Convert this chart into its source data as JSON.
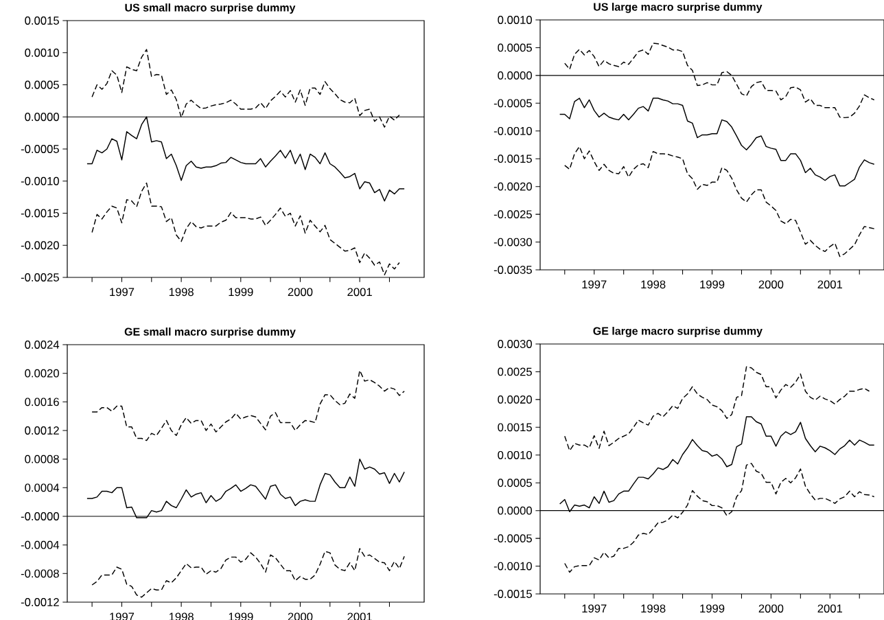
{
  "chart_data": [
    {
      "type": "line",
      "title": "US small macro surprise dummy",
      "x": [
        "1996-12",
        "1997-01",
        "1997-02",
        "1997-03",
        "1997-04",
        "1997-05",
        "1997-06",
        "1997-07",
        "1997-08",
        "1997-09",
        "1997-10",
        "1997-11",
        "1997-12",
        "1998-01",
        "1998-02",
        "1998-03",
        "1998-04",
        "1998-05",
        "1998-06",
        "1998-07",
        "1998-08",
        "1998-09",
        "1998-10",
        "1998-11",
        "1998-12",
        "1999-01",
        "1999-02",
        "1999-03",
        "1999-04",
        "1999-05",
        "1999-06",
        "1999-07",
        "1999-08",
        "1999-09",
        "1999-10",
        "1999-11",
        "1999-12",
        "2000-01",
        "2000-02",
        "2000-03",
        "2000-04",
        "2000-05",
        "2000-06",
        "2000-07",
        "2000-08",
        "2000-09",
        "2000-10",
        "2000-11",
        "2000-12",
        "2001-01",
        "2001-02",
        "2001-03",
        "2001-04",
        "2001-05",
        "2001-06",
        "2001-07",
        "2001-08",
        "2001-09",
        "2001-10",
        "2001-11",
        "2001-12",
        "2002-01",
        "2002-02",
        "2002-03",
        "2002-04"
      ],
      "xlim": [
        "1996-08",
        "2002-08"
      ],
      "xticks": [
        {
          "value": "1997-01",
          "label": null
        },
        {
          "value": "1997-07",
          "label": "1997"
        },
        {
          "value": "1998-01",
          "label": null
        },
        {
          "value": "1998-07",
          "label": "1998"
        },
        {
          "value": "1999-01",
          "label": null
        },
        {
          "value": "1999-07",
          "label": "1999"
        },
        {
          "value": "2000-01",
          "label": null
        },
        {
          "value": "2000-07",
          "label": "2000"
        },
        {
          "value": "2001-01",
          "label": null
        },
        {
          "value": "2001-07",
          "label": "2001"
        },
        {
          "value": "2002-01",
          "label": null
        }
      ],
      "ylim": [
        -0.0025,
        0.0015
      ],
      "yticks": [
        {
          "value": -0.0025,
          "label": "-0.0025"
        },
        {
          "value": -0.002,
          "label": "-0.0020"
        },
        {
          "value": -0.0015,
          "label": "-0.0015"
        },
        {
          "value": -0.001,
          "label": "-0.0010"
        },
        {
          "value": -0.0005,
          "label": "-0.0005"
        },
        {
          "value": 0,
          "label": "0.0000"
        },
        {
          "value": 0.0005,
          "label": "0.0005"
        },
        {
          "value": 0.001,
          "label": "0.0010"
        },
        {
          "value": 0.0015,
          "label": "0.0015"
        }
      ],
      "ref_lines": [
        {
          "axis": "y",
          "value": 0
        }
      ],
      "series": [
        {
          "color": "#000000",
          "line_style": "dashed",
          "values": [
            null,
            0.00031,
            0.0005,
            0.00043,
            0.00052,
            0.00072,
            0.00065,
            0.00038,
            0.00078,
            0.00074,
            0.00072,
            0.00093,
            0.00105,
            0.00063,
            0.00066,
            0.00065,
            0.00035,
            0.00042,
            0.00027,
            -1e-05,
            0.0002,
            0.00026,
            0.00019,
            0.00013,
            0.00014,
            0.00017,
            0.00019,
            0.0002,
            0.00022,
            0.00026,
            0.0002,
            0.00012,
            0.00012,
            0.00012,
            0.00014,
            0.00022,
            0.00013,
            0.00025,
            0.00032,
            0.0004,
            0.00031,
            0.00041,
            0.00023,
            0.00042,
            0.00018,
            0.00045,
            0.00045,
            0.00035,
            0.00055,
            0.00044,
            0.00036,
            0.00027,
            0.00023,
            0.00022,
            0.00029,
            2e-05,
            0.0001,
            0.00012,
            -7e-05,
            0,
            -0.00016,
            1e-05,
            -5e-05,
            3e-05,
            null
          ]
        },
        {
          "color": "#000000",
          "line_style": "solid",
          "values": [
            -0.00073,
            -0.00073,
            -0.00052,
            -0.00056,
            -0.0005,
            -0.00034,
            -0.00038,
            -0.00067,
            -0.00023,
            -0.00029,
            -0.00034,
            -0.00012,
            0,
            -0.00039,
            -0.00037,
            -0.00039,
            -0.00065,
            -0.00058,
            -0.00076,
            -0.00099,
            -0.00076,
            -0.00069,
            -0.00078,
            -0.0008,
            -0.00078,
            -0.00078,
            -0.00076,
            -0.00072,
            -0.00071,
            -0.00063,
            -0.00067,
            -0.00071,
            -0.00073,
            -0.00073,
            -0.00073,
            -0.00065,
            -0.00078,
            -0.00069,
            -0.00061,
            -0.00052,
            -0.00064,
            -0.00052,
            -0.00073,
            -0.00058,
            -0.00082,
            -0.00058,
            -0.00063,
            -0.00073,
            -0.00056,
            -0.00073,
            -0.00078,
            -0.00086,
            -0.00095,
            -0.00093,
            -0.00088,
            -0.00112,
            -0.00101,
            -0.00103,
            -0.00118,
            -0.00113,
            -0.00131,
            -0.00114,
            -0.0012,
            -0.00112,
            -0.00112
          ]
        },
        {
          "color": "#000000",
          "line_style": "dashed",
          "values": [
            null,
            -0.0018,
            -0.00152,
            -0.00159,
            -0.00148,
            -0.00139,
            -0.00142,
            -0.00165,
            -0.00129,
            -0.00131,
            -0.0014,
            -0.00116,
            -0.00103,
            -0.00139,
            -0.00139,
            -0.0014,
            -0.00163,
            -0.00157,
            -0.00184,
            -0.00194,
            -0.00174,
            -0.00163,
            -0.00171,
            -0.00173,
            -0.0017,
            -0.0017,
            -0.0017,
            -0.00164,
            -0.00161,
            -0.00149,
            -0.00157,
            -0.00157,
            -0.00157,
            -0.00159,
            -0.00159,
            -0.00156,
            -0.00169,
            -0.00161,
            -0.00152,
            -0.00142,
            -0.00155,
            -0.0015,
            -0.0017,
            -0.00154,
            -0.00181,
            -0.00161,
            -0.0017,
            -0.00179,
            -0.00169,
            -0.00191,
            -0.00197,
            -0.00203,
            -0.00209,
            -0.00208,
            -0.00204,
            -0.00227,
            -0.00212,
            -0.0022,
            -0.00231,
            -0.00226,
            -0.00246,
            -0.00229,
            -0.00237,
            -0.00227,
            null
          ]
        }
      ]
    },
    {
      "type": "line",
      "title": "US large macro surprise dummy",
      "x": [
        "1996-12",
        "1997-01",
        "1997-02",
        "1997-03",
        "1997-04",
        "1997-05",
        "1997-06",
        "1997-07",
        "1997-08",
        "1997-09",
        "1997-10",
        "1997-11",
        "1997-12",
        "1998-01",
        "1998-02",
        "1998-03",
        "1998-04",
        "1998-05",
        "1998-06",
        "1998-07",
        "1998-08",
        "1998-09",
        "1998-10",
        "1998-11",
        "1998-12",
        "1999-01",
        "1999-02",
        "1999-03",
        "1999-04",
        "1999-05",
        "1999-06",
        "1999-07",
        "1999-08",
        "1999-09",
        "1999-10",
        "1999-11",
        "1999-12",
        "2000-01",
        "2000-02",
        "2000-03",
        "2000-04",
        "2000-05",
        "2000-06",
        "2000-07",
        "2000-08",
        "2000-09",
        "2000-10",
        "2000-11",
        "2000-12",
        "2001-01",
        "2001-02",
        "2001-03",
        "2001-04",
        "2001-05",
        "2001-06",
        "2001-07",
        "2001-08",
        "2001-09",
        "2001-10",
        "2001-11",
        "2001-12",
        "2002-01",
        "2002-02",
        "2002-03",
        "2002-04"
      ],
      "xlim": [
        "1996-08",
        "2002-06"
      ],
      "xticks": [
        {
          "value": "1997-01",
          "label": null
        },
        {
          "value": "1997-07",
          "label": "1997"
        },
        {
          "value": "1998-01",
          "label": null
        },
        {
          "value": "1998-07",
          "label": "1998"
        },
        {
          "value": "1999-01",
          "label": null
        },
        {
          "value": "1999-07",
          "label": "1999"
        },
        {
          "value": "2000-01",
          "label": null
        },
        {
          "value": "2000-07",
          "label": "2000"
        },
        {
          "value": "2001-01",
          "label": null
        },
        {
          "value": "2001-07",
          "label": "2001"
        },
        {
          "value": "2002-01",
          "label": null
        }
      ],
      "ylim": [
        -0.0035,
        0.001
      ],
      "yticks": [
        {
          "value": -0.0035,
          "label": "-0.0035"
        },
        {
          "value": -0.003,
          "label": "-0.0030"
        },
        {
          "value": -0.0025,
          "label": "-0.0025"
        },
        {
          "value": -0.002,
          "label": "-0.0020"
        },
        {
          "value": -0.0015,
          "label": "-0.0015"
        },
        {
          "value": -0.001,
          "label": "-0.0010"
        },
        {
          "value": -0.0005,
          "label": "-0.0005"
        },
        {
          "value": 0,
          "label": "0.0000"
        },
        {
          "value": 0.0005,
          "label": "0.0005"
        },
        {
          "value": 0.001,
          "label": "0.0010"
        }
      ],
      "ref_lines": [
        {
          "axis": "y",
          "value": 0
        }
      ],
      "series": [
        {
          "color": "#000000",
          "line_style": "dashed",
          "values": [
            null,
            0.00022,
            0.00011,
            0.00038,
            0.00047,
            0.00037,
            0.00045,
            0.00034,
            0.00016,
            0.00027,
            0.00021,
            0.00018,
            0.00016,
            0.00024,
            0.0002,
            0.00031,
            0.00043,
            0.00046,
            0.00038,
            0.00058,
            0.00057,
            0.00054,
            0.00051,
            0.00046,
            0.00046,
            0.00043,
            0.00018,
            9e-05,
            -0.00018,
            -0.00017,
            -0.00013,
            -0.00017,
            -0.00017,
            5e-05,
            7e-05,
            0,
            -0.00016,
            -0.00033,
            -0.00037,
            -0.0002,
            -0.00013,
            -0.00011,
            -0.00027,
            -0.00027,
            -0.00028,
            -0.00044,
            -0.00038,
            -0.00022,
            -0.00021,
            -0.00026,
            -0.00048,
            -0.00042,
            -0.00054,
            -0.00054,
            -0.00058,
            -0.00058,
            -0.00058,
            -0.00075,
            -0.00076,
            -0.00075,
            -0.00068,
            -0.00055,
            -0.00035,
            -0.0004,
            -0.00044
          ]
        },
        {
          "color": "#000000",
          "line_style": "solid",
          "values": [
            -0.0007,
            -0.0007,
            -0.00078,
            -0.00047,
            -0.00041,
            -0.00058,
            -0.00044,
            -0.00063,
            -0.00075,
            -0.00068,
            -0.00075,
            -0.00078,
            -0.0008,
            -0.0007,
            -0.0008,
            -0.0007,
            -0.00059,
            -0.00056,
            -0.00064,
            -0.00041,
            -0.00041,
            -0.00044,
            -0.00046,
            -0.00051,
            -0.00051,
            -0.00054,
            -0.00082,
            -0.00086,
            -0.00112,
            -0.00107,
            -0.00107,
            -0.00105,
            -0.00105,
            -0.0008,
            -0.00083,
            -0.00093,
            -0.00109,
            -0.00126,
            -0.00134,
            -0.00124,
            -0.00112,
            -0.00109,
            -0.00128,
            -0.00131,
            -0.00133,
            -0.00153,
            -0.00153,
            -0.00141,
            -0.00141,
            -0.00153,
            -0.00175,
            -0.00167,
            -0.00179,
            -0.00183,
            -0.00189,
            -0.00182,
            -0.00179,
            -0.00199,
            -0.00199,
            -0.00193,
            -0.00187,
            -0.00165,
            -0.00152,
            -0.00157,
            -0.0016
          ]
        },
        {
          "color": "#000000",
          "line_style": "dashed",
          "values": [
            null,
            -0.00162,
            -0.00169,
            -0.00141,
            -0.00128,
            -0.0015,
            -0.00136,
            -0.00155,
            -0.00171,
            -0.0016,
            -0.00171,
            -0.00176,
            -0.00177,
            -0.00164,
            -0.00183,
            -0.00169,
            -0.00161,
            -0.00159,
            -0.00166,
            -0.00137,
            -0.00141,
            -0.00141,
            -0.00142,
            -0.00145,
            -0.00147,
            -0.0015,
            -0.00177,
            -0.00186,
            -0.00205,
            -0.00196,
            -0.00198,
            -0.00192,
            -0.00192,
            -0.00166,
            -0.00171,
            -0.00185,
            -0.00206,
            -0.00221,
            -0.00228,
            -0.00215,
            -0.00206,
            -0.00206,
            -0.00228,
            -0.00235,
            -0.00243,
            -0.00262,
            -0.00267,
            -0.00259,
            -0.00261,
            -0.00282,
            -0.00304,
            -0.00297,
            -0.00306,
            -0.00313,
            -0.00317,
            -0.00308,
            -0.00302,
            -0.00326,
            -0.00321,
            -0.00313,
            -0.00305,
            -0.00287,
            -0.00272,
            -0.00274,
            -0.00276
          ]
        }
      ]
    },
    {
      "type": "line",
      "title": "GE small macro surprise dummy",
      "x": [
        "1996-12",
        "1997-01",
        "1997-02",
        "1997-03",
        "1997-04",
        "1997-05",
        "1997-06",
        "1997-07",
        "1997-08",
        "1997-09",
        "1997-10",
        "1997-11",
        "1997-12",
        "1998-01",
        "1998-02",
        "1998-03",
        "1998-04",
        "1998-05",
        "1998-06",
        "1998-07",
        "1998-08",
        "1998-09",
        "1998-10",
        "1998-11",
        "1998-12",
        "1999-01",
        "1999-02",
        "1999-03",
        "1999-04",
        "1999-05",
        "1999-06",
        "1999-07",
        "1999-08",
        "1999-09",
        "1999-10",
        "1999-11",
        "1999-12",
        "2000-01",
        "2000-02",
        "2000-03",
        "2000-04",
        "2000-05",
        "2000-06",
        "2000-07",
        "2000-08",
        "2000-09",
        "2000-10",
        "2000-11",
        "2000-12",
        "2001-01",
        "2001-02",
        "2001-03",
        "2001-04",
        "2001-05",
        "2001-06",
        "2001-07",
        "2001-08",
        "2001-09",
        "2001-10",
        "2001-11",
        "2001-12",
        "2002-01",
        "2002-02",
        "2002-03",
        "2002-04"
      ],
      "xlim": [
        "1996-08",
        "2002-08"
      ],
      "xticks": [
        {
          "value": "1997-01",
          "label": null
        },
        {
          "value": "1997-07",
          "label": "1997"
        },
        {
          "value": "1998-01",
          "label": null
        },
        {
          "value": "1998-07",
          "label": "1998"
        },
        {
          "value": "1999-01",
          "label": null
        },
        {
          "value": "1999-07",
          "label": "1999"
        },
        {
          "value": "2000-01",
          "label": null
        },
        {
          "value": "2000-07",
          "label": "2000"
        },
        {
          "value": "2001-01",
          "label": null
        },
        {
          "value": "2001-07",
          "label": "2001"
        },
        {
          "value": "2002-01",
          "label": null
        }
      ],
      "ylim": [
        -0.0012,
        0.0024
      ],
      "yticks": [
        {
          "value": -0.0012,
          "label": "-0.0012"
        },
        {
          "value": -0.0008,
          "label": "-0.0008"
        },
        {
          "value": -0.0004,
          "label": "-0.0004"
        },
        {
          "value": 0,
          "label": "-0.0000"
        },
        {
          "value": 0.0004,
          "label": "0.0004"
        },
        {
          "value": 0.0008,
          "label": "0.0008"
        },
        {
          "value": 0.0012,
          "label": "0.0012"
        },
        {
          "value": 0.0016,
          "label": "0.0016"
        },
        {
          "value": 0.002,
          "label": "0.0020"
        },
        {
          "value": 0.0024,
          "label": "0.0024"
        }
      ],
      "ref_lines": [
        {
          "axis": "y",
          "value": 0
        }
      ],
      "series": [
        {
          "color": "#000000",
          "line_style": "dashed",
          "values": [
            null,
            0.00146,
            0.00146,
            0.00152,
            0.00152,
            0.00147,
            0.00154,
            0.00154,
            0.00125,
            0.00125,
            0.00109,
            0.00109,
            0.00106,
            0.00116,
            0.00113,
            0.00123,
            0.00134,
            0.0012,
            0.00113,
            0.00128,
            0.00138,
            0.0013,
            0.00134,
            0.00134,
            0.0012,
            0.00129,
            0.00118,
            0.00125,
            0.00132,
            0.00136,
            0.00144,
            0.00136,
            0.00139,
            0.00141,
            0.00139,
            0.0013,
            0.00121,
            0.0014,
            0.00145,
            0.00131,
            0.00131,
            0.00131,
            0.0012,
            0.00128,
            0.00134,
            0.00133,
            0.00131,
            0.00157,
            0.0017,
            0.0017,
            0.00162,
            0.00156,
            0.00158,
            0.00171,
            0.00165,
            0.00204,
            0.00189,
            0.00191,
            0.00187,
            0.00182,
            0.00175,
            0.0018,
            0.00178,
            0.00169,
            0.00175
          ]
        },
        {
          "color": "#000000",
          "line_style": "solid",
          "values": [
            0.00025,
            0.00025,
            0.00027,
            0.00035,
            0.00035,
            0.00033,
            0.0004,
            0.0004,
            0.00012,
            0.00013,
            -2e-05,
            -2e-05,
            -2e-05,
            8e-05,
            6e-05,
            8e-05,
            0.00021,
            0.00015,
            0.00012,
            0.00024,
            0.00037,
            0.00027,
            0.00031,
            0.00033,
            0.00019,
            0.00029,
            0.00021,
            0.00025,
            0.00035,
            0.00039,
            0.00044,
            0.00035,
            0.00039,
            0.00044,
            0.00042,
            0.00033,
            0.00024,
            0.00042,
            0.00044,
            0.00031,
            0.00025,
            0.00027,
            0.00015,
            0.00021,
            0.00023,
            0.00021,
            0.00021,
            0.00044,
            0.0006,
            0.00058,
            0.00048,
            0.0004,
            0.0004,
            0.00055,
            0.00042,
            0.0008,
            0.00066,
            0.00069,
            0.00066,
            0.00059,
            0.00061,
            0.00046,
            0.0006,
            0.00048,
            0.00062
          ]
        },
        {
          "color": "#000000",
          "line_style": "dashed",
          "values": [
            null,
            -0.00096,
            -0.00091,
            -0.00082,
            -0.00082,
            -0.00082,
            -0.00071,
            -0.00074,
            -0.00095,
            -0.00098,
            -0.0011,
            -0.00113,
            -0.00107,
            -0.00101,
            -0.00103,
            -0.00103,
            -0.0009,
            -0.00093,
            -0.00086,
            -0.00076,
            -0.00066,
            -0.00072,
            -0.00071,
            -0.00071,
            -0.00081,
            -0.00076,
            -0.00078,
            -0.00073,
            -0.00061,
            -0.00057,
            -0.00057,
            -0.00064,
            -0.0006,
            -0.00051,
            -0.00057,
            -0.00066,
            -0.00078,
            -0.00054,
            -0.00058,
            -0.00067,
            -0.00076,
            -0.00076,
            -0.0009,
            -0.00084,
            -0.00088,
            -0.00088,
            -0.00082,
            -0.00067,
            -0.00049,
            -0.00051,
            -0.00068,
            -0.00074,
            -0.00076,
            -0.00065,
            -0.00076,
            -0.00045,
            -0.00056,
            -0.00054,
            -0.00059,
            -0.00064,
            -0.00065,
            -0.00076,
            -0.00063,
            -0.00073,
            -0.00056
          ]
        }
      ]
    },
    {
      "type": "line",
      "title": "GE large macro surprise dummy",
      "x": [
        "1996-12",
        "1997-01",
        "1997-02",
        "1997-03",
        "1997-04",
        "1997-05",
        "1997-06",
        "1997-07",
        "1997-08",
        "1997-09",
        "1997-10",
        "1997-11",
        "1997-12",
        "1998-01",
        "1998-02",
        "1998-03",
        "1998-04",
        "1998-05",
        "1998-06",
        "1998-07",
        "1998-08",
        "1998-09",
        "1998-10",
        "1998-11",
        "1998-12",
        "1999-01",
        "1999-02",
        "1999-03",
        "1999-04",
        "1999-05",
        "1999-06",
        "1999-07",
        "1999-08",
        "1999-09",
        "1999-10",
        "1999-11",
        "1999-12",
        "2000-01",
        "2000-02",
        "2000-03",
        "2000-04",
        "2000-05",
        "2000-06",
        "2000-07",
        "2000-08",
        "2000-09",
        "2000-10",
        "2000-11",
        "2000-12",
        "2001-01",
        "2001-02",
        "2001-03",
        "2001-04",
        "2001-05",
        "2001-06",
        "2001-07",
        "2001-08",
        "2001-09",
        "2001-10",
        "2001-11",
        "2001-12",
        "2002-01",
        "2002-02",
        "2002-03",
        "2002-04"
      ],
      "xlim": [
        "1996-08",
        "2002-06"
      ],
      "xticks": [
        {
          "value": "1997-01",
          "label": null
        },
        {
          "value": "1997-07",
          "label": "1997"
        },
        {
          "value": "1998-01",
          "label": null
        },
        {
          "value": "1998-07",
          "label": "1998"
        },
        {
          "value": "1999-01",
          "label": null
        },
        {
          "value": "1999-07",
          "label": "1999"
        },
        {
          "value": "2000-01",
          "label": null
        },
        {
          "value": "2000-07",
          "label": "2000"
        },
        {
          "value": "2001-01",
          "label": null
        },
        {
          "value": "2001-07",
          "label": "2001"
        },
        {
          "value": "2002-01",
          "label": null
        }
      ],
      "ylim": [
        -0.0015,
        0.003
      ],
      "yticks": [
        {
          "value": -0.0015,
          "label": "-0.0015"
        },
        {
          "value": -0.001,
          "label": "-0.0010"
        },
        {
          "value": -0.0005,
          "label": "-0.0005"
        },
        {
          "value": 0,
          "label": "0.0000"
        },
        {
          "value": 0.0005,
          "label": "0.0005"
        },
        {
          "value": 0.001,
          "label": "0.0010"
        },
        {
          "value": 0.0015,
          "label": "0.0015"
        },
        {
          "value": 0.002,
          "label": "0.0020"
        },
        {
          "value": 0.0025,
          "label": "0.0025"
        },
        {
          "value": 0.003,
          "label": "0.0030"
        }
      ],
      "ref_lines": [
        {
          "axis": "y",
          "value": 0
        }
      ],
      "series": [
        {
          "color": "#000000",
          "line_style": "dashed",
          "values": [
            null,
            0.00134,
            0.00108,
            0.00121,
            0.00118,
            0.00118,
            0.00113,
            0.00135,
            0.00112,
            0.00143,
            0.00117,
            0.00123,
            0.0013,
            0.00134,
            0.00138,
            0.0015,
            0.00163,
            0.00158,
            0.00154,
            0.0017,
            0.00175,
            0.00169,
            0.00178,
            0.00189,
            0.00184,
            0.00202,
            0.0021,
            0.00223,
            0.0021,
            0.00204,
            0.002,
            0.0019,
            0.00187,
            0.0018,
            0.00166,
            0.00173,
            0.00204,
            0.00207,
            0.00259,
            0.00257,
            0.00249,
            0.00245,
            0.00223,
            0.00223,
            0.00203,
            0.00217,
            0.00227,
            0.00222,
            0.00231,
            0.00246,
            0.00215,
            0.00204,
            0.00199,
            0.00206,
            0.00201,
            0.00198,
            0.00192,
            0.002,
            0.00206,
            0.00215,
            0.00215,
            0.00218,
            0.0022,
            0.00215,
            null
          ]
        },
        {
          "color": "#000000",
          "line_style": "solid",
          "values": [
            0.00012,
            0.0002,
            -2e-05,
            0.0001,
            8e-05,
            0.0001,
            5e-05,
            0.00025,
            0.00013,
            0.00035,
            0.00015,
            0.00018,
            0.0003,
            0.00035,
            0.00035,
            0.00048,
            0.0006,
            0.0006,
            0.00057,
            0.00066,
            0.00077,
            0.00074,
            0.00079,
            0.00092,
            0.00084,
            0.00101,
            0.00113,
            0.00128,
            0.00117,
            0.00108,
            0.00106,
            0.00098,
            0.00101,
            0.00093,
            0.00079,
            0.00083,
            0.00115,
            0.0012,
            0.00169,
            0.00169,
            0.0016,
            0.00156,
            0.00134,
            0.00134,
            0.00116,
            0.00134,
            0.00142,
            0.00137,
            0.00142,
            0.00159,
            0.0013,
            0.00117,
            0.00106,
            0.00116,
            0.00113,
            0.00108,
            0.00101,
            0.00111,
            0.00117,
            0.00127,
            0.00118,
            0.00127,
            0.00123,
            0.00118,
            0.00118
          ]
        },
        {
          "color": "#000000",
          "line_style": "dashed",
          "values": [
            null,
            -0.00095,
            -0.00111,
            -0.00101,
            -0.00099,
            -0.00099,
            -0.00099,
            -0.00085,
            -0.00089,
            -0.00075,
            -0.00085,
            -0.00082,
            -0.00068,
            -0.00068,
            -0.00065,
            -0.00057,
            -0.00044,
            -0.00041,
            -0.00043,
            -0.00033,
            -0.00022,
            -0.00021,
            -0.00017,
            -8e-05,
            -0.00013,
            -3e-05,
            0.0001,
            0.00036,
            0.00026,
            0.00018,
            0.00016,
            9e-05,
            9e-05,
            5e-05,
            -9e-05,
            -2e-05,
            0.00025,
            0.00036,
            0.00082,
            0.00085,
            0.00071,
            0.00067,
            0.00051,
            0.00051,
            0.0003,
            0.00051,
            0.00058,
            0.0005,
            0.00059,
            0.00075,
            0.00044,
            0.0003,
            0.00019,
            0.00022,
            0.00022,
            0.00018,
            0.00013,
            0.00021,
            0.00025,
            0.00035,
            0.00025,
            0.00034,
            0.00029,
            0.00028,
            0.00025
          ]
        }
      ]
    }
  ]
}
